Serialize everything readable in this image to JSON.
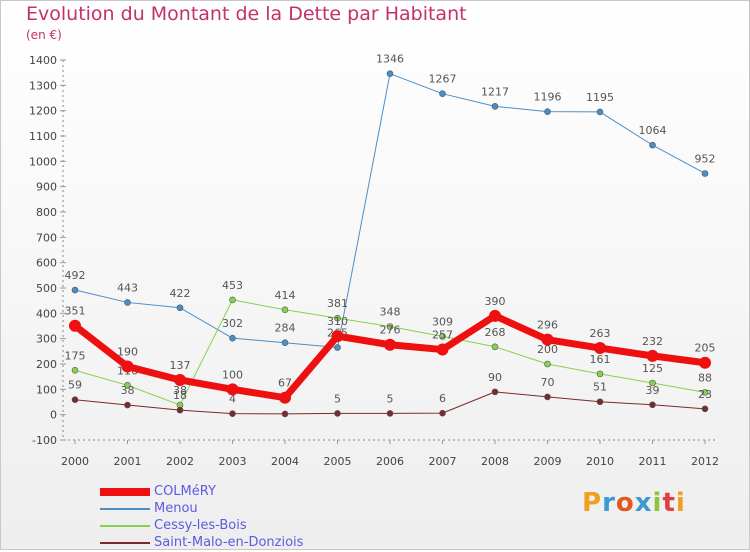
{
  "title": "Evolution du Montant de la Dette par Habitant",
  "unit_label": "(en €)",
  "brand": {
    "letters": [
      "P",
      "r",
      "o",
      "x",
      "i",
      "t",
      "i"
    ],
    "colors": [
      "#f0a020",
      "#3c9ad0",
      "#e05a20",
      "#3c9ad0",
      "#8cc63f",
      "#e04040",
      "#f0a020"
    ]
  },
  "colors": {
    "title": "#c4306c",
    "axis": "#888888",
    "grid": "#dddddd",
    "legend_text": "#5b5be0"
  },
  "chart_data": {
    "type": "line",
    "title": "Evolution du Montant de la Dette par Habitant",
    "ylabel": "(en €)",
    "xlabel": "",
    "x": [
      "2000",
      "2001",
      "2002",
      "2003",
      "2004",
      "2005",
      "2006",
      "2007",
      "2008",
      "2009",
      "2010",
      "2011",
      "2012"
    ],
    "ylim": [
      -100,
      1400
    ],
    "yticks": [
      "-100",
      "0",
      "100",
      "200",
      "300",
      "400",
      "500",
      "600",
      "700",
      "800",
      "900",
      "1000",
      "1100",
      "1200",
      "1300",
      "1400"
    ],
    "legend_position": "bottom-left",
    "grid": false,
    "series": [
      {
        "name": "Menou",
        "color": "#4a8ec8",
        "width": 1,
        "values": [
          492,
          443,
          422,
          302,
          284,
          265,
          1346,
          1267,
          1217,
          1196,
          1195,
          1064,
          952
        ],
        "labels": [
          "492",
          "443",
          "422",
          "302",
          "284",
          "265",
          "1346",
          "1267",
          "1217",
          "1196",
          "1195",
          "1064",
          "952"
        ]
      },
      {
        "name": "Cessy-les-Bois",
        "color": "#88d050",
        "width": 1,
        "values": [
          175,
          116,
          38,
          453,
          414,
          381,
          348,
          309,
          268,
          200,
          161,
          125,
          88
        ],
        "labels": [
          "175",
          "116",
          "38",
          "453",
          "414",
          "381",
          "348",
          "309",
          "268",
          "200",
          "161",
          "125",
          "88"
        ]
      },
      {
        "name": "Saint-Malo-en-Donziois",
        "color": "#7a2a2a",
        "width": 1,
        "values": [
          59,
          38,
          18,
          4,
          3,
          5,
          5,
          6,
          90,
          70,
          51,
          39,
          23
        ],
        "labels": [
          "59",
          "38",
          "18",
          "4",
          "3",
          "5",
          "5",
          "6",
          "90",
          "70",
          "51",
          "39",
          "23"
        ]
      },
      {
        "name": "COLMéRY",
        "color": "#ee1010",
        "width": 7,
        "values": [
          351,
          190,
          137,
          100,
          67,
          310,
          276,
          257,
          390,
          296,
          263,
          232,
          205
        ],
        "labels": [
          "351",
          "190",
          "137",
          "100",
          "67",
          "310",
          "276",
          "257",
          "390",
          "296",
          "263",
          "232",
          "205"
        ]
      }
    ],
    "legend_order": [
      "COLMéRY",
      "Menou",
      "Cessy-les-Bois",
      "Saint-Malo-en-Donziois"
    ]
  }
}
